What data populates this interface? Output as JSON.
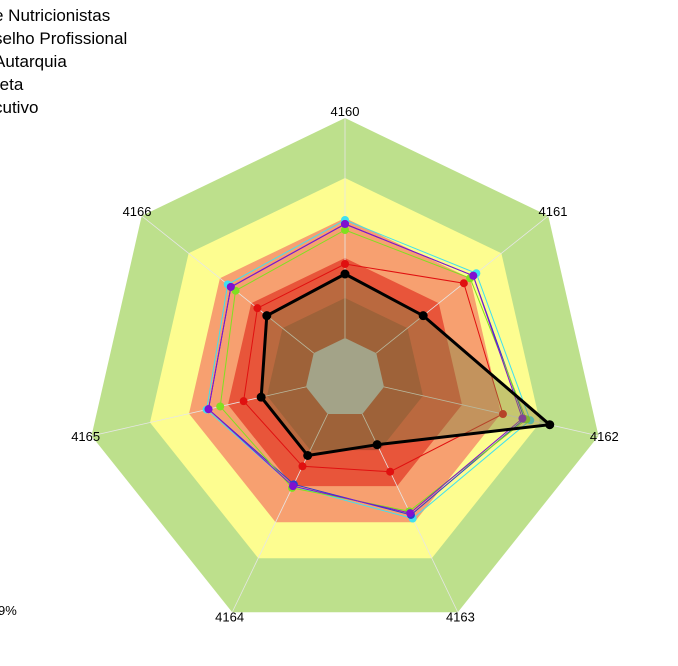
{
  "chart_data": {
    "type": "radar",
    "axes": [
      "4160",
      "4161",
      "4162",
      "4163",
      "4164",
      "4165",
      "4166"
    ],
    "range": [
      0,
      100
    ],
    "bands": [
      {
        "from": 0,
        "to": 20,
        "color": "#bdbdbd"
      },
      {
        "from": 20,
        "to": 40,
        "color": "#b5482f"
      },
      {
        "from": 40,
        "to": 60,
        "color": "#e8553a"
      },
      {
        "from": 60,
        "to": 80,
        "color": "#f7a070"
      },
      {
        "from": 80,
        "to": 100,
        "color": "#fdfd90"
      },
      {
        "from": 100,
        "to": 130,
        "color": "#bde08c"
      }
    ],
    "legend": [
      "e Nutricionistas",
      "selho Profissional",
      "Autarquia",
      "reta",
      "cutivo"
    ],
    "footnote": "9%",
    "series": [
      {
        "color": "#40e0f0",
        "width": 1,
        "values": [
          79,
          84,
          95,
          78,
          60,
          71,
          75
        ]
      },
      {
        "color": "#2a3cd0",
        "width": 1,
        "values": [
          77,
          82,
          92,
          76,
          59,
          70,
          73
        ]
      },
      {
        "color": "#80e020",
        "width": 1,
        "values": [
          74,
          80,
          93,
          74,
          61,
          64,
          70
        ]
      },
      {
        "color": "#e01010",
        "width": 1,
        "values": [
          57,
          76,
          81,
          52,
          49,
          52,
          56
        ]
      },
      {
        "color": "#8010d0",
        "width": 1,
        "values": [
          77,
          82,
          91,
          75,
          60,
          70,
          73
        ]
      },
      {
        "color": "#000000",
        "width": 3,
        "fill": "rgba(130,130,70,0.45)",
        "values": [
          52,
          50,
          105,
          37,
          43,
          43,
          50
        ]
      }
    ]
  }
}
